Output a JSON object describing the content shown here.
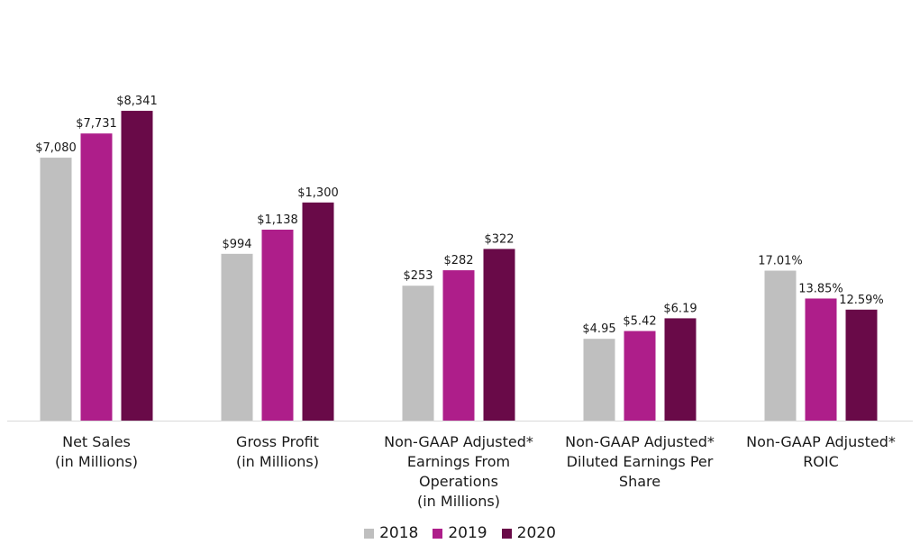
{
  "chart_data": {
    "type": "bar",
    "categories": [
      [
        "Net Sales",
        "(in Millions)"
      ],
      [
        "Gross Profit",
        "(in Millions)"
      ],
      [
        "Non-GAAP Adjusted*",
        "Earnings From",
        "Operations",
        "(in Millions)"
      ],
      [
        "Non-GAAP Adjusted*",
        "Diluted Earnings Per",
        "Share"
      ],
      [
        "Non-GAAP Adjusted*",
        "ROIC"
      ]
    ],
    "series": [
      {
        "name": "2018",
        "color": "#bfbfbf"
      },
      {
        "name": "2019",
        "color": "#ae1e8a"
      },
      {
        "name": "2020",
        "color": "#690a48"
      }
    ],
    "groups": [
      {
        "values": [
          7080,
          7731,
          8341
        ],
        "labels": [
          "$7,080",
          "$7,731",
          "$8,341"
        ],
        "ymax": 8900
      },
      {
        "values": [
          994,
          1138,
          1300
        ],
        "labels": [
          "$994",
          "$1,138",
          "$1,300"
        ],
        "ymax": 1970
      },
      {
        "values": [
          253,
          282,
          322
        ],
        "labels": [
          "$253",
          "$282",
          "$322"
        ],
        "ymax": 620
      },
      {
        "values": [
          4.95,
          5.42,
          6.19
        ],
        "labels": [
          "$4.95",
          "$5.42",
          "$6.19"
        ],
        "ymax": 20
      },
      {
        "values": [
          17.01,
          13.85,
          12.59
        ],
        "labels": [
          "17.01%",
          "13.85%",
          "12.59%"
        ],
        "ymax": 37.5
      }
    ],
    "legend_position": "bottom-center",
    "grid": false
  }
}
